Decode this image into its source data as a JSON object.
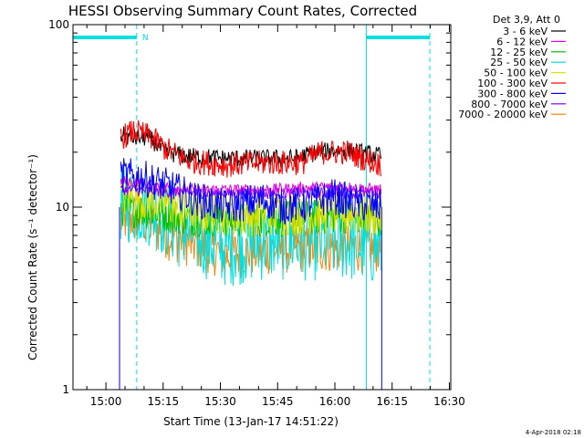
{
  "chart_data": {
    "type": "line",
    "title": "HESSI Observing Summary Count Rates, Corrected",
    "xlabel": "Start Time (13-Jan-17 14:51:22)",
    "ylabel": "Corrected Count Rate (s⁻¹ detector⁻¹)",
    "yscale": "log",
    "ylim": [
      1,
      100
    ],
    "xlim_minutes_from_start": [
      0,
      99
    ],
    "x_ticks": [
      {
        "label": "15:00",
        "minutes": 8.63
      },
      {
        "label": "15:15",
        "minutes": 23.63
      },
      {
        "label": "15:30",
        "minutes": 38.63
      },
      {
        "label": "15:45",
        "minutes": 53.63
      },
      {
        "label": "16:00",
        "minutes": 68.63
      },
      {
        "label": "16:15",
        "minutes": 83.63
      },
      {
        "label": "16:30",
        "minutes": 98.63
      }
    ],
    "y_ticks": [
      {
        "label": "1",
        "value": 1
      },
      {
        "label": "10",
        "value": 10
      },
      {
        "label": "100",
        "value": 100
      }
    ],
    "legend_title": "Det 3,9, Att 0",
    "legend_position": "outside-right",
    "annotation": "N",
    "timestamp": "4-Apr-2018 02:18",
    "night_marks_minutes": [
      0,
      76.9
    ],
    "night_bars": [
      [
        0,
        16.7
      ],
      [
        76.9,
        93.5
      ]
    ],
    "saa_dashed_minutes": [
      16.7,
      93.5
    ],
    "data_gap_marks_minutes": [
      12.2,
      80.9
    ],
    "data_window_minutes": [
      12.5,
      80.7
    ],
    "series": [
      {
        "name": "3 - 6 keV",
        "color": "#000000",
        "profile": [
          [
            12.5,
            25
          ],
          [
            15,
            24
          ],
          [
            20,
            24
          ],
          [
            24,
            20
          ],
          [
            30,
            19
          ],
          [
            40,
            18.5
          ],
          [
            50,
            18.5
          ],
          [
            58,
            18.5
          ],
          [
            64,
            20
          ],
          [
            70,
            20.5
          ],
          [
            75,
            20
          ],
          [
            80.7,
            19
          ]
        ]
      },
      {
        "name": "6 - 12 keV",
        "color": "#e000e0",
        "profile": [
          [
            12.5,
            14
          ],
          [
            18,
            13.5
          ],
          [
            30,
            12.5
          ],
          [
            50,
            12.5
          ],
          [
            70,
            13
          ],
          [
            80.7,
            12.5
          ]
        ]
      },
      {
        "name": "12 - 25 keV",
        "color": "#00c000",
        "profile": [
          [
            12.5,
            9.8
          ],
          [
            20,
            9.5
          ],
          [
            30,
            8.7
          ],
          [
            45,
            8.5
          ],
          [
            60,
            8.7
          ],
          [
            70,
            9.0
          ],
          [
            80.7,
            8.7
          ]
        ]
      },
      {
        "name": "25 - 50 keV",
        "color": "#00e0e0",
        "profile": [
          [
            12.5,
            10.5
          ],
          [
            20,
            10
          ],
          [
            28,
            7.5
          ],
          [
            40,
            6
          ],
          [
            50,
            6.5
          ],
          [
            60,
            6.5
          ],
          [
            70,
            6.5
          ],
          [
            80.7,
            6
          ]
        ]
      },
      {
        "name": "50 - 100 keV",
        "color": "#e0e000",
        "profile": [
          [
            12.5,
            11.5
          ],
          [
            20,
            11
          ],
          [
            30,
            9.5
          ],
          [
            45,
            9
          ],
          [
            60,
            9.2
          ],
          [
            70,
            9.4
          ],
          [
            80.7,
            9
          ]
        ]
      },
      {
        "name": "100 - 300 keV",
        "color": "#ff0000",
        "profile": [
          [
            12.5,
            24
          ],
          [
            16,
            26
          ],
          [
            20,
            24.5
          ],
          [
            24,
            21
          ],
          [
            30,
            18
          ],
          [
            40,
            17
          ],
          [
            50,
            17.5
          ],
          [
            60,
            17.5
          ],
          [
            65,
            20
          ],
          [
            72,
            20
          ],
          [
            76,
            18.5
          ],
          [
            80.7,
            17
          ]
        ]
      },
      {
        "name": "300 - 800 keV",
        "color": "#0000ff",
        "profile": [
          [
            12.5,
            15
          ],
          [
            18,
            14.5
          ],
          [
            25,
            13
          ],
          [
            32,
            11
          ],
          [
            40,
            10
          ],
          [
            45,
            10.5
          ],
          [
            50,
            11
          ],
          [
            55,
            10
          ],
          [
            62,
            10.5
          ],
          [
            68,
            11.5
          ],
          [
            74,
            10.5
          ],
          [
            80.7,
            10
          ]
        ]
      },
      {
        "name": "800 - 7000 keV",
        "color": "#8000ff",
        "profile": [
          [
            12.5,
            12.5
          ],
          [
            20,
            12.3
          ],
          [
            30,
            12
          ],
          [
            50,
            11.8
          ],
          [
            70,
            12
          ],
          [
            80.7,
            11.8
          ]
        ]
      },
      {
        "name": "7000 - 20000 keV",
        "color": "#ff8000",
        "profile": [
          [
            12.5,
            8.5
          ],
          [
            16,
            8.8
          ],
          [
            20,
            8.2
          ],
          [
            25,
            7
          ],
          [
            30,
            6.5
          ],
          [
            40,
            5.5
          ],
          [
            50,
            5.8
          ],
          [
            60,
            6
          ],
          [
            70,
            6
          ],
          [
            80.7,
            6
          ]
        ]
      }
    ]
  }
}
